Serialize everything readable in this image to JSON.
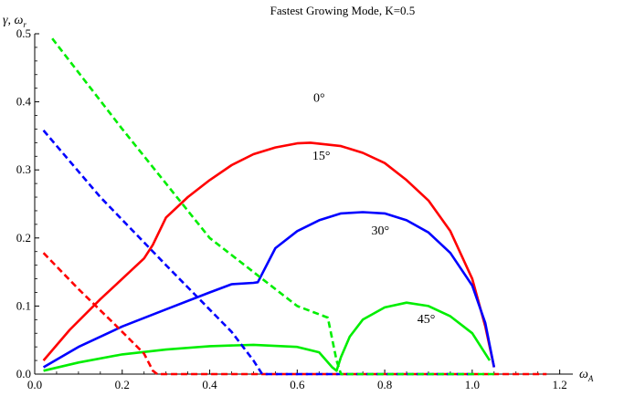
{
  "chart_data": {
    "type": "line",
    "title": "Fastest Growing Mode, K=0.5",
    "xlabel": "ω_A",
    "ylabel": "γ, ω_r",
    "xlim": [
      0.0,
      1.23
    ],
    "ylim": [
      0.0,
      0.5
    ],
    "x_ticks": [
      "0.0",
      "0.2",
      "0.4",
      "0.6",
      "0.8",
      "1.0",
      "1.2"
    ],
    "x_tick_values": [
      0.0,
      0.2,
      0.4,
      0.6,
      0.8,
      1.0,
      1.2
    ],
    "y_ticks": [
      "0.0",
      "0.1",
      "0.2",
      "0.3",
      "0.4",
      "0.5"
    ],
    "y_tick_values": [
      0.0,
      0.1,
      0.2,
      0.3,
      0.4,
      0.5
    ],
    "grid": false,
    "annotations": [
      {
        "text": "0°",
        "x": 0.65,
        "y": 0.4
      },
      {
        "text": "15°",
        "x": 0.655,
        "y": 0.315
      },
      {
        "text": "30°",
        "x": 0.79,
        "y": 0.205
      },
      {
        "text": "45°",
        "x": 0.895,
        "y": 0.075
      }
    ],
    "series": [
      {
        "color": "#ff0000",
        "style": "solid",
        "x": [
          0.02,
          0.08,
          0.15,
          0.2,
          0.25,
          0.27,
          0.3,
          0.35,
          0.4,
          0.45,
          0.5,
          0.55,
          0.6,
          0.63,
          0.7,
          0.75,
          0.8,
          0.85,
          0.9,
          0.95,
          1.0,
          1.03,
          1.05
        ],
        "y": [
          0.02,
          0.065,
          0.11,
          0.14,
          0.17,
          0.19,
          0.23,
          0.26,
          0.285,
          0.307,
          0.323,
          0.333,
          0.339,
          0.34,
          0.335,
          0.325,
          0.31,
          0.285,
          0.255,
          0.21,
          0.14,
          0.07,
          0.01
        ]
      },
      {
        "color": "#0000ff",
        "style": "solid",
        "x": [
          0.02,
          0.1,
          0.2,
          0.3,
          0.4,
          0.45,
          0.5,
          0.51,
          0.53,
          0.55,
          0.6,
          0.65,
          0.7,
          0.75,
          0.8,
          0.85,
          0.9,
          0.95,
          1.0,
          1.03,
          1.05
        ],
        "y": [
          0.01,
          0.04,
          0.07,
          0.095,
          0.12,
          0.132,
          0.134,
          0.135,
          0.16,
          0.185,
          0.21,
          0.226,
          0.236,
          0.238,
          0.236,
          0.226,
          0.208,
          0.178,
          0.13,
          0.075,
          0.01
        ]
      },
      {
        "color": "#00ee00",
        "style": "solid",
        "x": [
          0.02,
          0.1,
          0.2,
          0.3,
          0.4,
          0.5,
          0.6,
          0.65,
          0.68,
          0.69,
          0.7,
          0.72,
          0.75,
          0.8,
          0.85,
          0.9,
          0.95,
          1.0,
          1.04
        ],
        "y": [
          0.005,
          0.017,
          0.029,
          0.036,
          0.041,
          0.043,
          0.04,
          0.032,
          0.01,
          0.005,
          0.025,
          0.055,
          0.08,
          0.098,
          0.105,
          0.1,
          0.085,
          0.06,
          0.02
        ]
      },
      {
        "color": "#ff0000",
        "style": "dashed",
        "x": [
          0.02,
          0.1,
          0.18,
          0.25,
          0.27,
          0.28,
          0.4,
          0.6,
          0.8,
          1.0,
          1.1,
          1.17
        ],
        "y": [
          0.178,
          0.125,
          0.075,
          0.03,
          0.005,
          0.0,
          0.0,
          0.0,
          0.0,
          0.0,
          0.0,
          0.0
        ]
      },
      {
        "color": "#0000ff",
        "style": "dashed",
        "x": [
          0.02,
          0.15,
          0.3,
          0.45,
          0.5,
          0.52,
          0.53,
          0.6,
          0.8,
          1.0
        ],
        "y": [
          0.358,
          0.26,
          0.16,
          0.062,
          0.02,
          0.0,
          0.0,
          0.0,
          0.0,
          0.0
        ]
      },
      {
        "color": "#00ee00",
        "style": "dashed",
        "x": [
          0.04,
          0.2,
          0.4,
          0.6,
          0.67,
          0.69,
          0.7,
          0.75,
          0.9,
          1.05
        ],
        "y": [
          0.493,
          0.36,
          0.2,
          0.1,
          0.083,
          0.02,
          0.0,
          0.0,
          0.0,
          0.0
        ]
      }
    ]
  }
}
